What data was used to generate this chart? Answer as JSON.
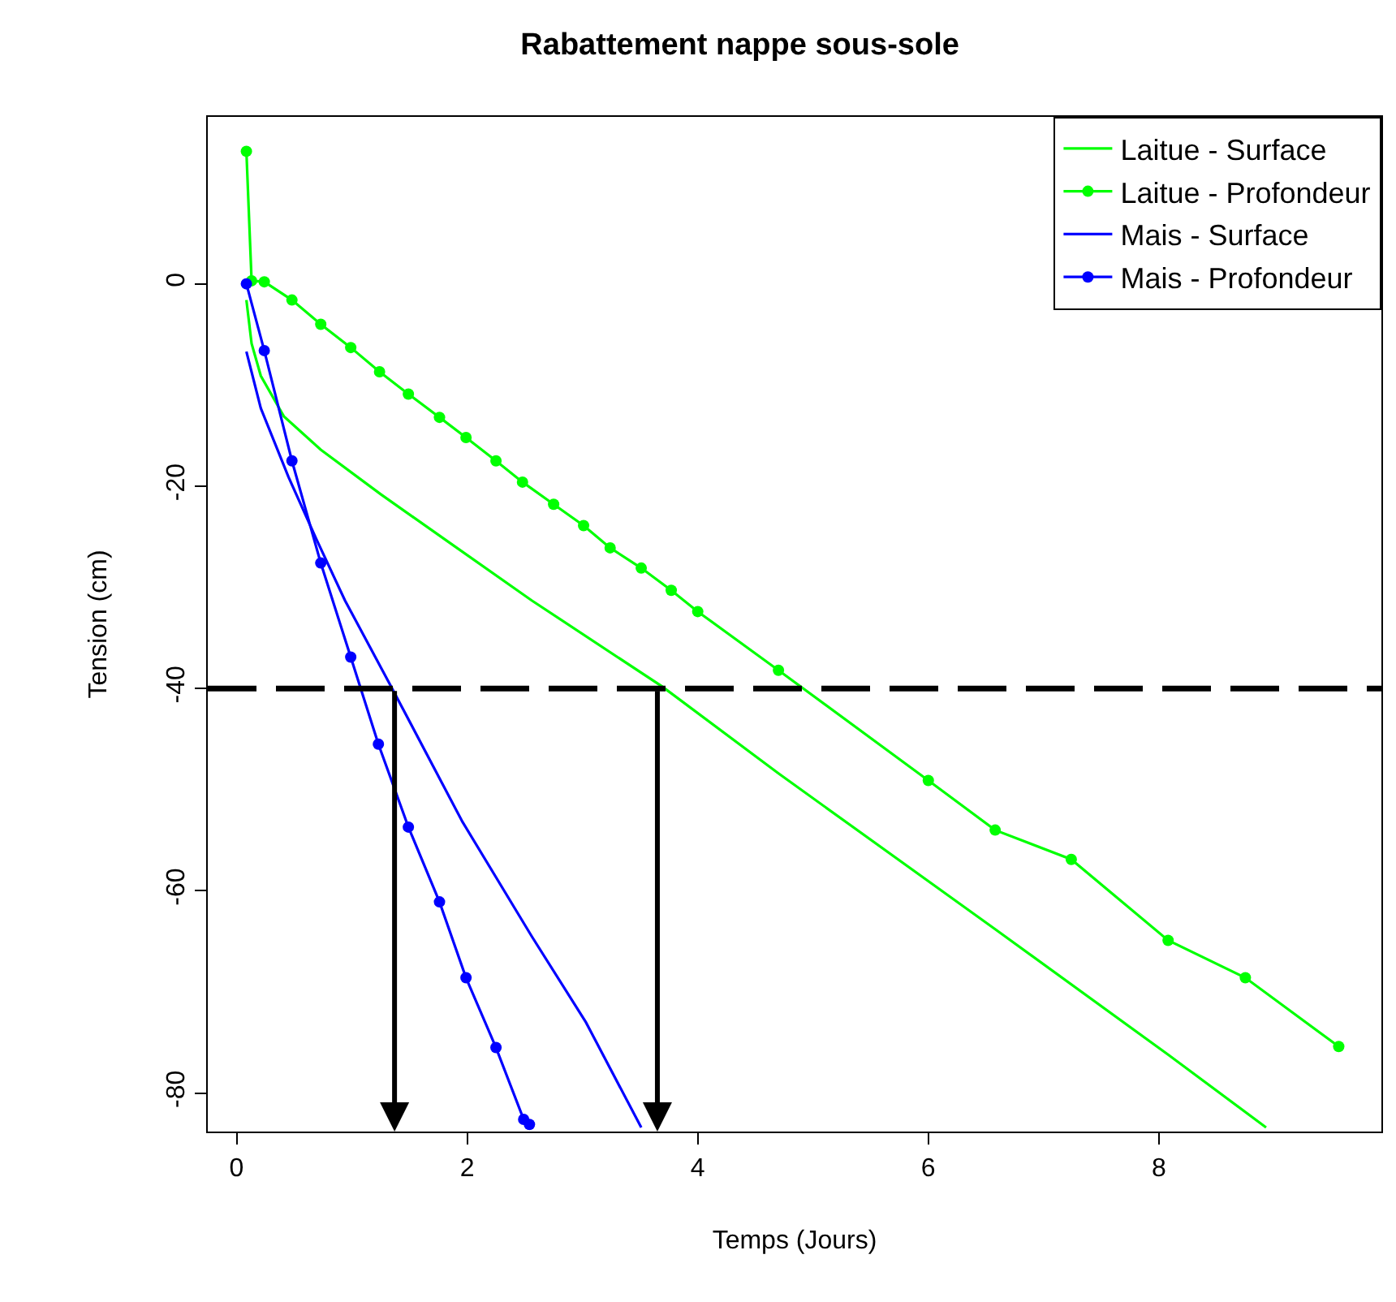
{
  "chart_data": {
    "type": "line",
    "title": "Rabattement nappe sous-sole",
    "xlabel": "Temps (Jours)",
    "ylabel": "Tension (cm)",
    "xlim": [
      -0.25,
      9.93
    ],
    "ylim": [
      -83.8,
      16.5
    ],
    "xticks": [
      0,
      2,
      4,
      6,
      8
    ],
    "yticks": [
      0,
      -20,
      -40,
      -60,
      -80
    ],
    "grid": false,
    "legend": "top right",
    "series": [
      {
        "name": "Laitue - Surface",
        "color": "#00ff00",
        "x": [
          0.085,
          0.13,
          0.21,
          0.41,
          0.73,
          1.25,
          1.86,
          2.56,
          3.69,
          4.7,
          6.58,
          8.08,
          8.93
        ],
        "values": [
          -1.6,
          -5.9,
          -9.1,
          -13.1,
          -16.4,
          -20.8,
          -25.7,
          -31.3,
          -39.8,
          -48.4,
          -63.8,
          -76.2,
          -83.4
        ]
      },
      {
        "name": "Laitue - Profondeur",
        "color": "#00ff00",
        "marker": "circle",
        "x": [
          0.085,
          0.13,
          0.24,
          0.48,
          0.73,
          0.99,
          1.24,
          1.49,
          1.76,
          1.99,
          2.25,
          2.48,
          2.75,
          3.01,
          3.24,
          3.51,
          3.77,
          4.0,
          4.7,
          6.0,
          6.58,
          7.24,
          8.08,
          8.75,
          9.56
        ],
        "values": [
          13.1,
          0.3,
          0.2,
          -1.6,
          -4.0,
          -6.3,
          -8.7,
          -10.9,
          -13.2,
          -15.2,
          -17.5,
          -19.6,
          -21.8,
          -23.9,
          -26.1,
          -28.1,
          -30.3,
          -32.4,
          -38.2,
          -49.1,
          -54.0,
          -56.9,
          -64.9,
          -68.6,
          -75.4
        ]
      },
      {
        "name": "Mais - Surface",
        "color": "#0000ff",
        "x": [
          0.085,
          0.21,
          0.45,
          0.69,
          0.94,
          1.34,
          1.96,
          2.56,
          3.03,
          3.51
        ],
        "values": [
          -6.7,
          -12.3,
          -19.1,
          -25.2,
          -31.3,
          -39.8,
          -53.2,
          -64.5,
          -73.0,
          -83.4
        ]
      },
      {
        "name": "Mais - Profondeur",
        "color": "#0000ff",
        "marker": "circle",
        "x": [
          0.085,
          0.24,
          0.48,
          0.73,
          0.99,
          1.23,
          1.49,
          1.76,
          1.99,
          2.25,
          2.49,
          2.54
        ],
        "values": [
          0,
          -6.6,
          -17.5,
          -27.6,
          -36.9,
          -45.5,
          -53.7,
          -61.1,
          -68.6,
          -75.5,
          -82.6,
          -83.1
        ]
      }
    ],
    "ref_lines": [
      {
        "axis": "y",
        "value": -40,
        "color": "#000000",
        "line_style": "dashed"
      },
      {
        "axis": "x",
        "value": 1.37,
        "color": "#000000"
      },
      {
        "axis": "x",
        "value": 3.65,
        "color": "#000000"
      }
    ]
  }
}
